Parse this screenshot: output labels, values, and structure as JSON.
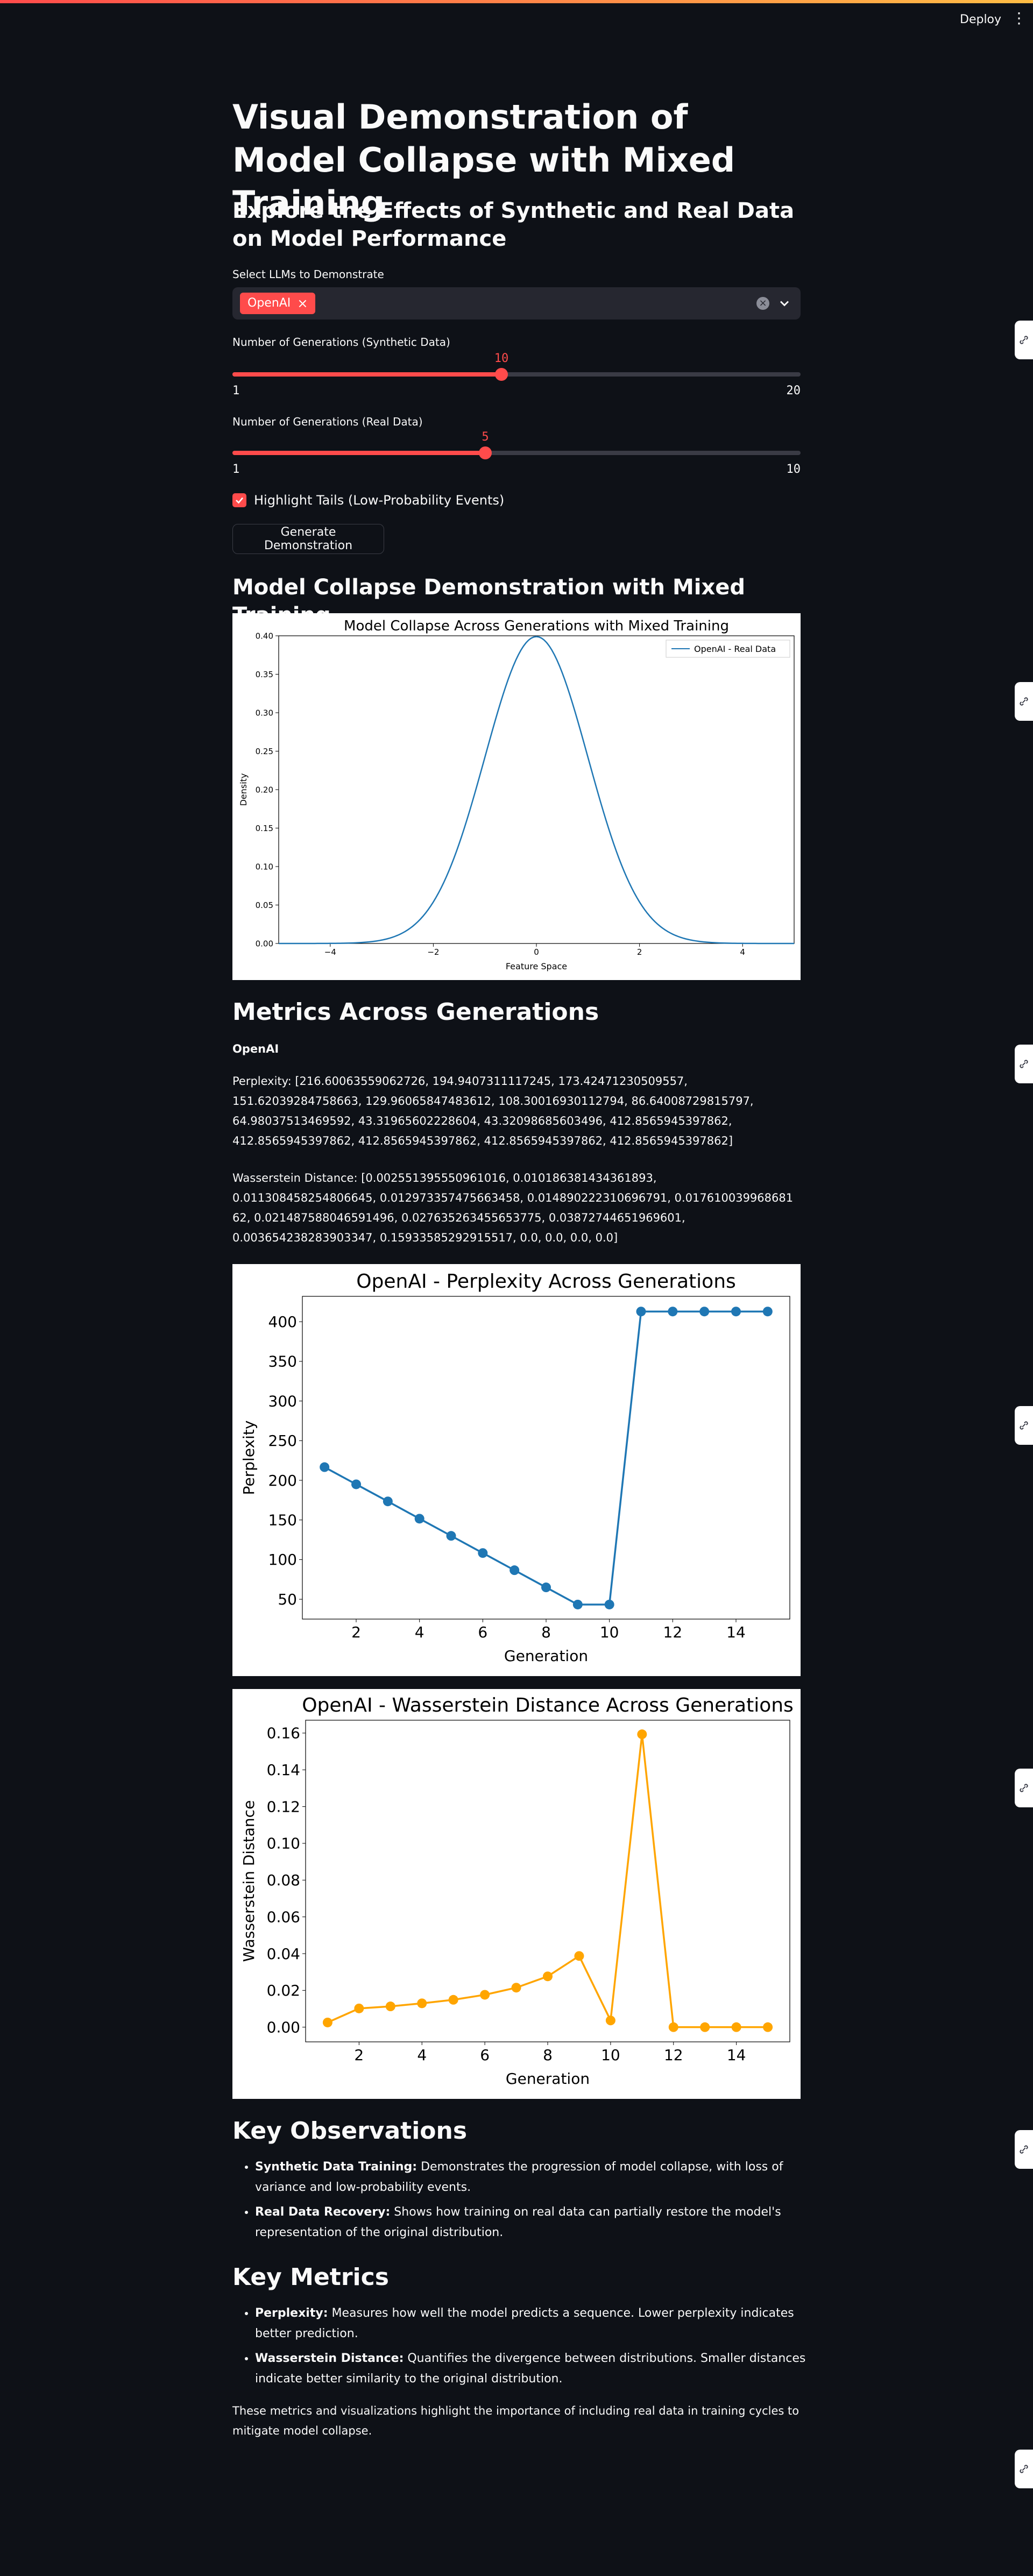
{
  "header": {
    "deploy_label": "Deploy",
    "menu_icon": "kebab-menu-icon"
  },
  "title": "Visual Demonstration of Model Collapse with Mixed Training",
  "subtitle": "Explore the Effects of Synthetic and Real Data on Model Performance",
  "llm_select": {
    "label": "Select LLMs to Demonstrate",
    "selected": [
      "OpenAI"
    ]
  },
  "slider_synthetic": {
    "label": "Number of Generations (Synthetic Data)",
    "value": "10",
    "min": "1",
    "max": "20"
  },
  "slider_real": {
    "label": "Number of Generations (Real Data)",
    "value": "5",
    "min": "1",
    "max": "10"
  },
  "highlight_tails": {
    "label": "Highlight Tails (Low-Probability Events)",
    "checked": true
  },
  "generate_button": "Generate Demonstration",
  "demo_heading": "Model Collapse Demonstration with Mixed Training",
  "metrics_heading": "Metrics Across Generations",
  "model_name": "OpenAI",
  "perplexity_text": "Perplexity: [216.60063559062726, 194.9407311117245, 173.42471230509557, 151.62039284758663, 129.96065847483612, 108.30016930112794, 86.64008729815797, 64.98037513469592, 43.31965602228604, 43.32098685603496, 412.8565945397862, 412.8565945397862, 412.8565945397862, 412.8565945397862, 412.8565945397862]",
  "wasserstein_text": "Wasserstein Distance: [0.002551395550961016, 0.010186381434361893, 0.011308458254806645, 0.012973357475663458, 0.014890222310696791, 0.017610039968681 62, 0.021487588046591496, 0.027635263455653775, 0.03872744651969601, 0.003654238283903347, 0.15933585292915517, 0.0, 0.0, 0.0, 0.0]",
  "observations": {
    "heading": "Key Observations",
    "items": [
      {
        "term": "Synthetic Data Training:",
        "text": " Demonstrates the progression of model collapse, with loss of variance and low-probability events."
      },
      {
        "term": "Real Data Recovery:",
        "text": " Shows how training on real data can partially restore the model's representation of the original distribution."
      }
    ]
  },
  "key_metrics": {
    "heading": "Key Metrics",
    "items": [
      {
        "term": "Perplexity:",
        "text": " Measures how well the model predicts a sequence. Lower perplexity indicates better prediction."
      },
      {
        "term": "Wasserstein Distance:",
        "text": " Quantifies the divergence between distributions. Smaller distances indicate better similarity to the original distribution."
      }
    ]
  },
  "conclusion": "These metrics and visualizations highlight the importance of including real data in training cycles to mitigate model collapse.",
  "chart_data": [
    {
      "type": "line",
      "title": "Model Collapse Across Generations with Mixed Training",
      "xlabel": "Feature Space",
      "ylabel": "Density",
      "xlim": [
        -5,
        5
      ],
      "ylim": [
        0,
        0.4
      ],
      "xticks": [
        -4,
        -2,
        0,
        2,
        4
      ],
      "yticks": [
        0.0,
        0.05,
        0.1,
        0.15,
        0.2,
        0.25,
        0.3,
        0.35,
        0.4
      ],
      "legend_position": "top-right",
      "series": [
        {
          "name": "OpenAI - Real Data",
          "color": "#1f77b4",
          "x": [
            -5,
            -4.5,
            -4,
            -3.5,
            -3,
            -2.5,
            -2,
            -1.5,
            -1,
            -0.5,
            0,
            0.5,
            1,
            1.5,
            2,
            2.5,
            3,
            3.5,
            4,
            4.5,
            5
          ],
          "y": [
            0.0,
            0.0,
            0.0001,
            0.0009,
            0.0044,
            0.0175,
            0.054,
            0.1295,
            0.242,
            0.352,
            0.399,
            0.352,
            0.242,
            0.1295,
            0.054,
            0.0175,
            0.0044,
            0.0009,
            0.0001,
            0.0,
            0.0
          ]
        }
      ]
    },
    {
      "type": "line",
      "title": "OpenAI - Perplexity Across Generations",
      "xlabel": "Generation",
      "ylabel": "Perplexity",
      "xlim": [
        0.3,
        15.7
      ],
      "ylim": [
        25,
        432
      ],
      "xticks": [
        2,
        4,
        6,
        8,
        10,
        12,
        14
      ],
      "yticks": [
        50,
        100,
        150,
        200,
        250,
        300,
        350,
        400
      ],
      "series": [
        {
          "color": "#1f77b4",
          "x": [
            1,
            2,
            3,
            4,
            5,
            6,
            7,
            8,
            9,
            10,
            11,
            12,
            13,
            14,
            15
          ],
          "y": [
            216.6,
            194.94,
            173.42,
            151.62,
            129.96,
            108.3,
            86.64,
            64.98,
            43.32,
            43.32,
            412.86,
            412.86,
            412.86,
            412.86,
            412.86
          ]
        }
      ]
    },
    {
      "type": "line",
      "title": "OpenAI - Wasserstein Distance Across Generations",
      "xlabel": "Generation",
      "ylabel": "Wasserstein Distance",
      "xlim": [
        0.3,
        15.7
      ],
      "ylim": [
        -0.008,
        0.167
      ],
      "xticks": [
        2,
        4,
        6,
        8,
        10,
        12,
        14
      ],
      "yticks": [
        0.0,
        0.02,
        0.04,
        0.06,
        0.08,
        0.1,
        0.12,
        0.14,
        0.16
      ],
      "series": [
        {
          "color": "#ffa500",
          "x": [
            1,
            2,
            3,
            4,
            5,
            6,
            7,
            8,
            9,
            10,
            11,
            12,
            13,
            14,
            15
          ],
          "y": [
            0.00255,
            0.01019,
            0.01131,
            0.01297,
            0.01489,
            0.01761,
            0.02149,
            0.02764,
            0.03873,
            0.00365,
            0.15934,
            0.0,
            0.0,
            0.0,
            0.0
          ]
        }
      ]
    }
  ],
  "side_tab_icon": "link-icon"
}
